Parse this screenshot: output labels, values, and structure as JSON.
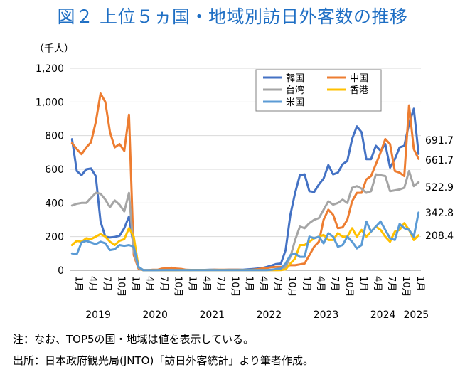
{
  "header": {
    "title": "図２ 上位５ヵ国・地域別訪日外客数の推移"
  },
  "footer": {
    "note": "注：なお、TOP5の国・地域は値を表示している。",
    "source": "出所：日本政府観光局(JNTO)「訪日外客統計」より筆者作成。"
  },
  "chart_data": {
    "type": "line",
    "ylabel": "（千人）",
    "ylim": [
      0,
      1200
    ],
    "yticks": [
      "0",
      "200",
      "400",
      "600",
      "800",
      "1,000",
      "1,200"
    ],
    "month_tick_labels": [
      "1月",
      "4月",
      "7月",
      "10月"
    ],
    "years": [
      "2019",
      "2020",
      "2021",
      "2022",
      "2023",
      "2024",
      "2025"
    ],
    "x": [
      "2019-01",
      "2019-02",
      "2019-03",
      "2019-04",
      "2019-05",
      "2019-06",
      "2019-07",
      "2019-08",
      "2019-09",
      "2019-10",
      "2019-11",
      "2019-12",
      "2020-01",
      "2020-02",
      "2020-03",
      "2020-04",
      "2020-05",
      "2020-06",
      "2020-07",
      "2020-08",
      "2020-09",
      "2020-10",
      "2020-11",
      "2020-12",
      "2021-01",
      "2021-02",
      "2021-03",
      "2021-04",
      "2021-05",
      "2021-06",
      "2021-07",
      "2021-08",
      "2021-09",
      "2021-10",
      "2021-11",
      "2021-12",
      "2022-01",
      "2022-02",
      "2022-03",
      "2022-04",
      "2022-05",
      "2022-06",
      "2022-07",
      "2022-08",
      "2022-09",
      "2022-10",
      "2022-11",
      "2022-12",
      "2023-01",
      "2023-02",
      "2023-03",
      "2023-04",
      "2023-05",
      "2023-06",
      "2023-07",
      "2023-08",
      "2023-09",
      "2023-10",
      "2023-11",
      "2023-12",
      "2024-01",
      "2024-02",
      "2024-03",
      "2024-04",
      "2024-05",
      "2024-06",
      "2024-07",
      "2024-08",
      "2024-09",
      "2024-10",
      "2024-11",
      "2024-12",
      "2025-01",
      "2025-02"
    ],
    "series": [
      {
        "name": "韓国",
        "color": "#4472c4",
        "values": [
          779,
          590,
          565,
          600,
          605,
          560,
          290,
          200,
          195,
          198,
          205,
          250,
          320,
          140,
          20,
          1,
          1,
          1,
          1,
          1,
          1,
          1,
          1,
          2,
          2,
          1,
          2,
          2,
          2,
          3,
          3,
          2,
          2,
          3,
          3,
          3,
          3,
          5,
          7,
          10,
          13,
          20,
          28,
          37,
          40,
          120,
          330,
          460,
          565,
          570,
          470,
          465,
          510,
          545,
          625,
          570,
          580,
          630,
          650,
          780,
          855,
          820,
          660,
          660,
          740,
          710,
          750,
          610,
          660,
          730,
          740,
          870,
          960,
          691.7
        ]
      },
      {
        "name": "中国",
        "color": "#ed7d31",
        "values": [
          755,
          720,
          690,
          730,
          760,
          880,
          1050,
          1000,
          820,
          730,
          750,
          710,
          925,
          90,
          10,
          0.5,
          0.5,
          3,
          3,
          10,
          12,
          15,
          10,
          8,
          3,
          2,
          2,
          2,
          2,
          2,
          3,
          3,
          3,
          3,
          3,
          3,
          2,
          2,
          3,
          6,
          10,
          13,
          18,
          20,
          20,
          25,
          30,
          30,
          35,
          40,
          90,
          140,
          170,
          300,
          360,
          330,
          250,
          255,
          300,
          410,
          460,
          460,
          540,
          560,
          630,
          700,
          780,
          750,
          590,
          580,
          560,
          980,
          720,
          661.7
        ]
      },
      {
        "name": "台湾",
        "color": "#a5a5a5",
        "values": [
          385,
          395,
          400,
          400,
          430,
          460,
          455,
          420,
          375,
          415,
          390,
          350,
          460,
          110,
          15,
          0.5,
          0.5,
          0.5,
          1,
          1,
          1,
          1,
          1,
          1,
          1,
          1,
          1,
          1,
          1,
          1,
          1,
          1,
          1,
          1,
          1,
          1,
          1,
          1,
          1,
          1,
          1,
          1,
          1,
          1,
          2,
          20,
          80,
          180,
          260,
          250,
          280,
          300,
          310,
          360,
          410,
          390,
          400,
          420,
          400,
          490,
          500,
          485,
          460,
          470,
          570,
          565,
          560,
          470,
          475,
          480,
          490,
          590,
          500,
          522.9
        ]
      },
      {
        "name": "香港",
        "color": "#ffc000",
        "values": [
          150,
          175,
          170,
          190,
          185,
          200,
          215,
          200,
          170,
          150,
          175,
          185,
          250,
          200,
          20,
          0.5,
          0.5,
          0.5,
          0.5,
          0.5,
          0.5,
          0.5,
          0.5,
          1,
          1,
          1,
          1,
          1,
          1,
          1,
          1,
          1,
          1,
          1,
          1,
          1,
          1,
          1,
          1,
          1,
          1,
          1,
          1,
          1,
          1,
          5,
          40,
          70,
          150,
          150,
          170,
          190,
          200,
          210,
          180,
          180,
          220,
          200,
          200,
          250,
          200,
          240,
          200,
          230,
          260,
          240,
          200,
          170,
          230,
          240,
          280,
          240,
          180,
          208.4
        ]
      },
      {
        "name": "米国",
        "color": "#5b9bd5",
        "values": [
          100,
          95,
          165,
          175,
          165,
          155,
          170,
          160,
          120,
          125,
          150,
          145,
          150,
          140,
          20,
          0.5,
          0.5,
          0.5,
          0.5,
          1,
          1,
          1,
          1,
          1,
          1,
          1,
          1,
          1,
          1,
          1,
          1,
          1,
          1,
          1,
          1,
          1,
          1,
          1,
          1,
          1,
          1,
          1,
          3,
          7,
          10,
          40,
          90,
          100,
          80,
          80,
          200,
          190,
          200,
          160,
          220,
          200,
          140,
          150,
          200,
          170,
          130,
          150,
          290,
          230,
          260,
          290,
          240,
          190,
          180,
          275,
          250,
          240,
          200,
          342.8
        ]
      }
    ],
    "end_labels": [
      "691.7",
      "661.7",
      "522.9",
      "342.8",
      "208.4"
    ],
    "legend": {
      "placement": "top-right",
      "columns": 2
    },
    "grid": "horizontal"
  }
}
